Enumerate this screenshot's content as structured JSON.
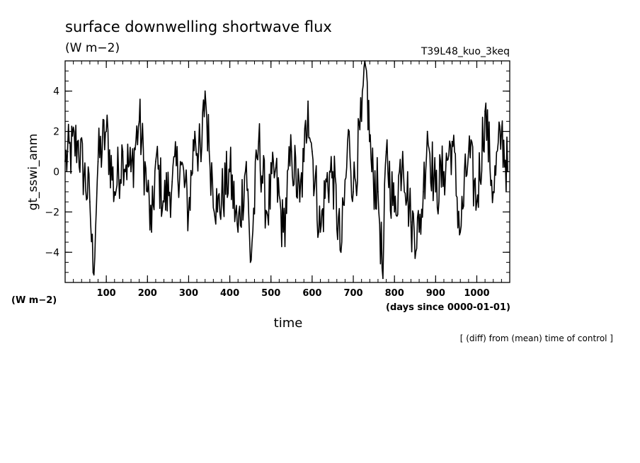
{
  "chart_data": {
    "type": "line",
    "title": "surface downwelling shortwave flux",
    "units": "(W m−2)",
    "run_label": "T39L48_kuo_3keq",
    "ylabel": "gt_sswi_anm",
    "xlabel": "time",
    "x_units": "(days since 0000-01-01)",
    "y_units_bottom": "(W m−2)",
    "annotation": "[ (diff) from (mean) time of control ]",
    "xlim": [
      0,
      1080
    ],
    "ylim": [
      -5.5,
      5.5
    ],
    "x_ticks": [
      100,
      200,
      300,
      400,
      500,
      600,
      700,
      800,
      900,
      1000
    ],
    "y_ticks": [
      -4,
      -2,
      0,
      2,
      4
    ],
    "x": [
      0,
      30,
      60,
      68,
      80,
      100,
      120,
      140,
      160,
      180,
      200,
      210,
      220,
      240,
      260,
      280,
      300,
      315,
      330,
      340,
      350,
      370,
      400,
      420,
      440,
      450,
      470,
      490,
      510,
      530,
      550,
      570,
      580,
      590,
      600,
      620,
      635,
      650,
      670,
      690,
      700,
      720,
      730,
      745,
      760,
      772,
      780,
      800,
      820,
      840,
      860,
      870,
      880,
      900,
      920,
      940,
      960,
      980,
      1000,
      1020,
      1040,
      1060,
      1075
    ],
    "series": [
      {
        "values": [
          0.5,
          1.5,
          -1.5,
          -5.0,
          0.5,
          2.0,
          -1.0,
          1.0,
          0.0,
          2.5,
          -1.0,
          -3.0,
          0.5,
          -1.5,
          -0.5,
          0.5,
          -2.0,
          2.0,
          0.5,
          4.0,
          1.0,
          -2.0,
          0.0,
          -3.0,
          0.5,
          -4.5,
          1.5,
          -2.0,
          0.0,
          -3.0,
          1.0,
          -1.5,
          0.5,
          3.5,
          1.0,
          -3.0,
          -0.5,
          0.0,
          -4.0,
          2.0,
          -1.0,
          2.5,
          5.2,
          0.0,
          -1.0,
          -5.3,
          1.0,
          -2.0,
          1.0,
          -2.5,
          -3.0,
          -1.0,
          2.0,
          -1.0,
          0.0,
          1.5,
          -3.0,
          1.0,
          -1.5,
          3.0,
          -1.0,
          2.0,
          0.0
        ]
      }
    ]
  }
}
